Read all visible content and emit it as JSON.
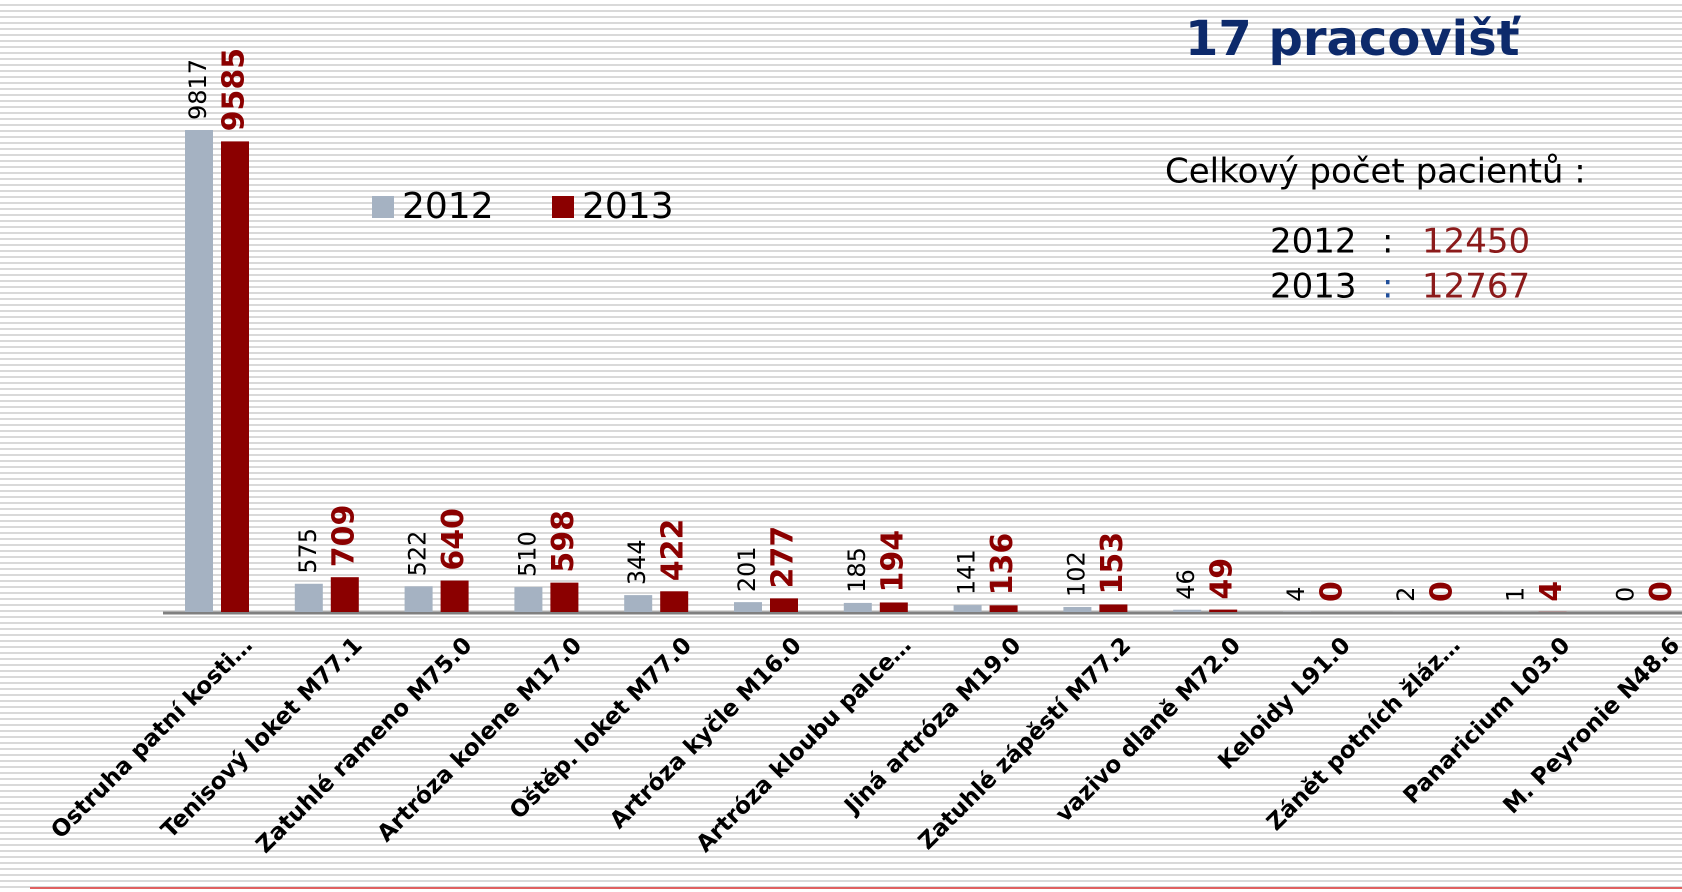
{
  "chart_data": {
    "type": "bar",
    "categories": [
      "Ostruha patní kosti…",
      "Tenisový loket  M77.1",
      "Zatuhlé rameno  M75.0",
      "Artróza kolene M17.0",
      "Oštěp. loket  M77.0",
      "Artróza kyčle  M16.0",
      "Artróza kloubu palce…",
      "Jiná artróza M19.0",
      "Zatuhlé  zápěstí  M77.2",
      "vazivo dlaně M72.0",
      "Keloidy L91.0",
      "Zánět potních žláz…",
      "Panaricium  L03.0",
      "M. Peyronie  N48.6"
    ],
    "series": [
      {
        "name": "2012",
        "color": "#a5b2c2",
        "values": [
          9817,
          575,
          522,
          510,
          344,
          201,
          185,
          141,
          102,
          46,
          4,
          2,
          1,
          0
        ]
      },
      {
        "name": "2013",
        "color": "#8b0000",
        "values": [
          9585,
          709,
          640,
          598,
          422,
          277,
          194,
          136,
          153,
          49,
          0,
          0,
          4,
          0
        ]
      }
    ],
    "legend": "top-left",
    "annotations": {
      "heading": "17 pracovišť",
      "totals_title": "Celkový počet pacientů :",
      "separator": ":",
      "totals": [
        {
          "year": "2012",
          "value": 12450
        },
        {
          "year": "2013",
          "value": 12767
        }
      ]
    }
  }
}
